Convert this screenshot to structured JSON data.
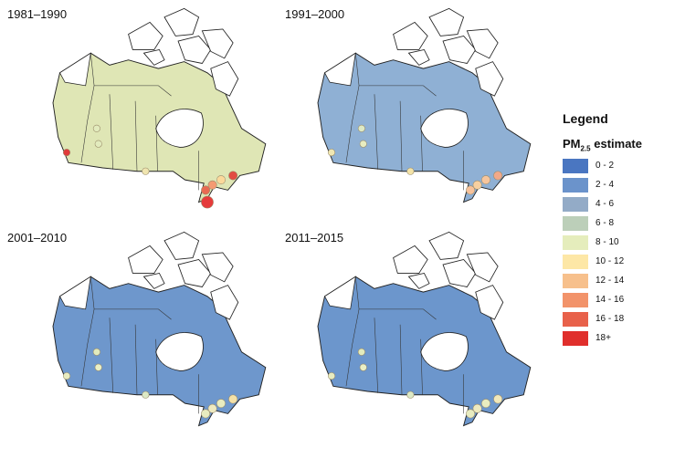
{
  "panels": [
    {
      "title": "1981–1990",
      "interior": "#dfe6b5",
      "stations": [
        "#e03a3a",
        "#e2ebbd",
        "#e2ebbd",
        "#f0e5b0",
        "#fbd99b",
        "#f49a72",
        "#e96a52",
        "#e24a42",
        "#e53b3b"
      ]
    },
    {
      "title": "1991–2000",
      "interior": "#8fb0d4",
      "stations": [
        "#f0e7b3",
        "#dde9c5",
        "#e8ecc0",
        "#f3e3a8",
        "#f6c59c",
        "#f7d0a0",
        "#f7c29b",
        "#f2a989"
      ]
    },
    {
      "title": "2001–2010",
      "interior": "#6e97cc",
      "stations": [
        "#e8ecc0",
        "#e2ebbd",
        "#eaefc5",
        "#dde9c5",
        "#e8ecc0",
        "#eeeac0",
        "#e8ecc0",
        "#f4e1a7"
      ]
    },
    {
      "title": "2011–2015",
      "interior": "#6c96cc",
      "stations": [
        "#e8ecc0",
        "#e2ebbd",
        "#eaefc5",
        "#dde9c5",
        "#e8ecc0",
        "#eeeac0",
        "#e8ecc0",
        "#f2e8ba"
      ]
    }
  ],
  "legend": {
    "title": "Legend",
    "subtitle_main": "PM",
    "subtitle_sub": "2.5",
    "subtitle_rest": " estimate",
    "items": [
      {
        "label": "0 - 2",
        "color": "#4a76c1"
      },
      {
        "label": "2 - 4",
        "color": "#6b93cb"
      },
      {
        "label": "4 - 6",
        "color": "#93abc7"
      },
      {
        "label": "6 - 8",
        "color": "#bccfb9"
      },
      {
        "label": "8 - 10",
        "color": "#e5edbc"
      },
      {
        "label": "10 - 12",
        "color": "#fde7a6"
      },
      {
        "label": "12 - 14",
        "color": "#f7c08c"
      },
      {
        "label": "14 - 16",
        "color": "#f2936a"
      },
      {
        "label": "16 - 18",
        "color": "#e8614a"
      },
      {
        "label": "18+",
        "color": "#e02f2c"
      }
    ]
  }
}
